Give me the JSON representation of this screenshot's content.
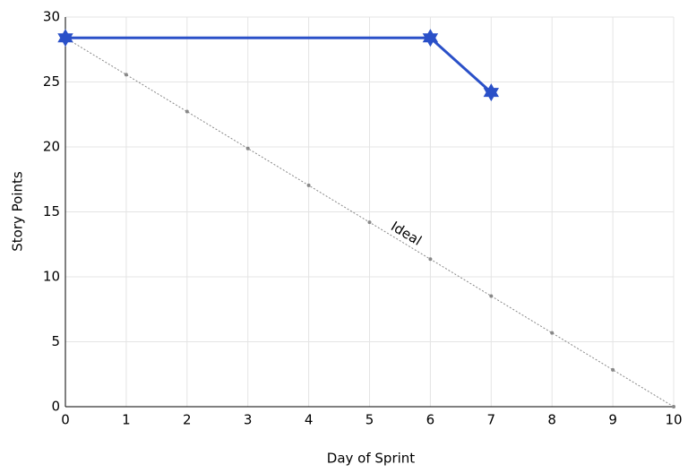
{
  "chart_data": {
    "type": "line",
    "x_label": "Day of Sprint",
    "y_label": "Story Points",
    "xlim": [
      0,
      10
    ],
    "xticks": [
      0,
      1,
      2,
      3,
      4,
      5,
      6,
      7,
      8,
      9,
      10
    ],
    "ylim": [
      0,
      30
    ],
    "yticks": [
      0,
      5,
      10,
      15,
      20,
      25,
      30
    ],
    "grid": true,
    "series": [
      {
        "color": "#2a50c8",
        "marker": "star",
        "x": [
          0,
          6,
          7
        ],
        "values": [
          28.4,
          28.4,
          24.2
        ]
      },
      {
        "name": "Ideal",
        "color": "#888888",
        "marker": "dot",
        "dashed": true,
        "x": [
          0,
          1,
          2,
          3,
          4,
          5,
          6,
          7,
          8,
          9,
          10
        ],
        "values": [
          28.4,
          25.56,
          22.72,
          19.88,
          17.04,
          14.2,
          11.36,
          8.52,
          5.68,
          2.84,
          0
        ]
      }
    ]
  }
}
